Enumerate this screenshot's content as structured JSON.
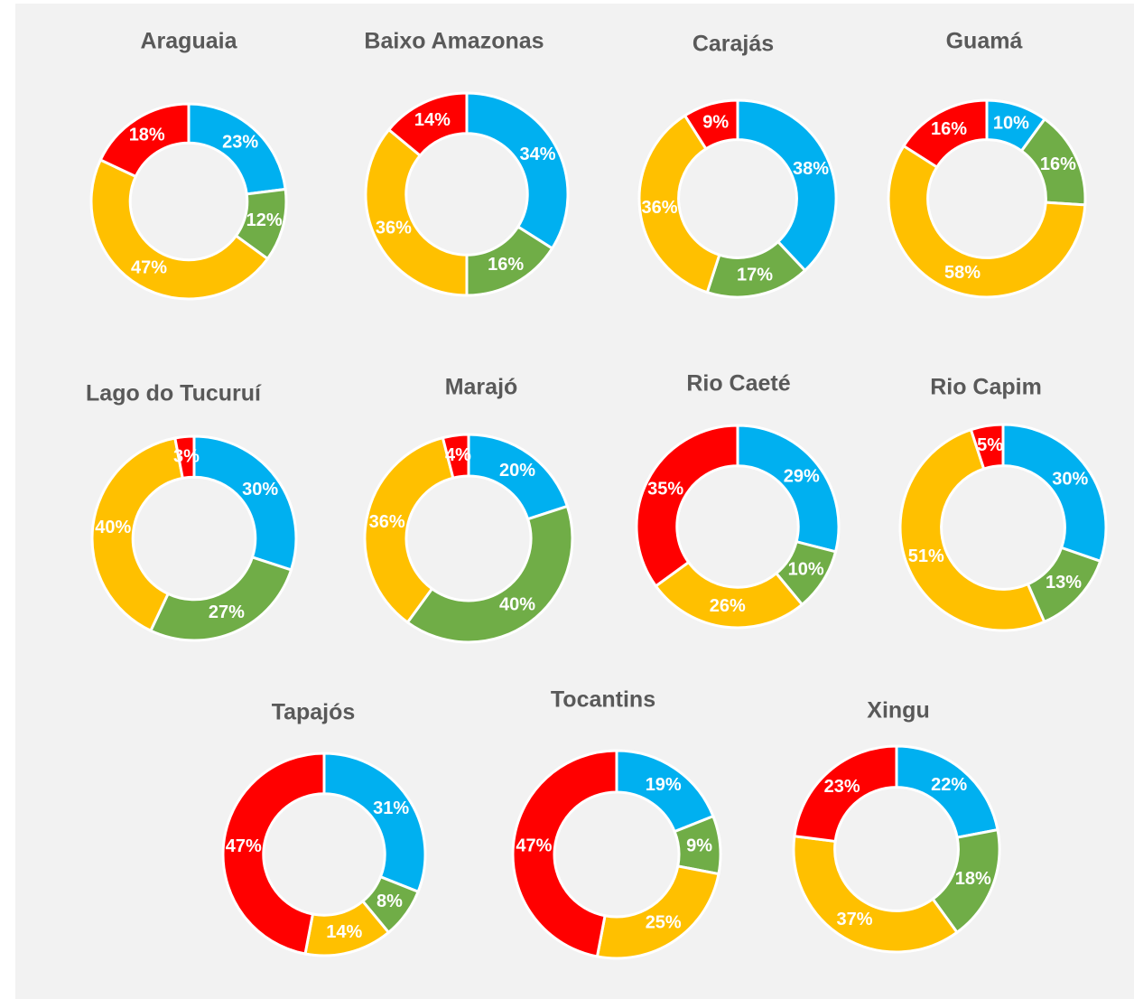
{
  "colors": {
    "blue": "#00b0f0",
    "green": "#70ad47",
    "yellow": "#ffc000",
    "red": "#ff0000",
    "background": "#f2f2f2",
    "title_text": "#595959",
    "label_text": "#ffffff"
  },
  "chart_data": [
    {
      "type": "pie",
      "title": "Araguaia",
      "values": [
        23,
        12,
        47,
        18
      ],
      "labels": [
        "23%",
        "12%",
        "47%",
        "18%"
      ]
    },
    {
      "type": "pie",
      "title": "Baixo Amazonas",
      "values": [
        34,
        16,
        36,
        14
      ],
      "labels": [
        "34%",
        "16%",
        "36%",
        "14%"
      ]
    },
    {
      "type": "pie",
      "title": "Carajás",
      "values": [
        38,
        17,
        36,
        9
      ],
      "labels": [
        "38%",
        "17%",
        "36%",
        "9%"
      ]
    },
    {
      "type": "pie",
      "title": "Guamá",
      "values": [
        10,
        16,
        58,
        16
      ],
      "labels": [
        "10%",
        "16%",
        "58%",
        "16%"
      ]
    },
    {
      "type": "pie",
      "title": "Lago do Tucuruí",
      "values": [
        30,
        27,
        40,
        3
      ],
      "labels": [
        "30%",
        "27%",
        "40%",
        "3%"
      ]
    },
    {
      "type": "pie",
      "title": "Marajó",
      "values": [
        20,
        40,
        36,
        4
      ],
      "labels": [
        "20%",
        "40%",
        "36%",
        "4%"
      ]
    },
    {
      "type": "pie",
      "title": "Rio Caeté",
      "values": [
        29,
        10,
        26,
        35
      ],
      "labels": [
        "29%",
        "10%",
        "26%",
        "35%"
      ]
    },
    {
      "type": "pie",
      "title": "Rio Capim",
      "values": [
        30,
        13,
        51,
        5
      ],
      "labels": [
        "30%",
        "13%",
        "51%",
        "5%"
      ]
    },
    {
      "type": "pie",
      "title": "Tapajós",
      "values": [
        31,
        8,
        14,
        47
      ],
      "labels": [
        "31%",
        "8%",
        "14%",
        "47%"
      ]
    },
    {
      "type": "pie",
      "title": "Tocantins",
      "values": [
        19,
        9,
        25,
        47
      ],
      "labels": [
        "19%",
        "9%",
        "25%",
        "47%"
      ]
    },
    {
      "type": "pie",
      "title": "Xingu",
      "values": [
        22,
        18,
        37,
        23
      ],
      "labels": [
        "22%",
        "18%",
        "37%",
        "23%"
      ]
    }
  ]
}
